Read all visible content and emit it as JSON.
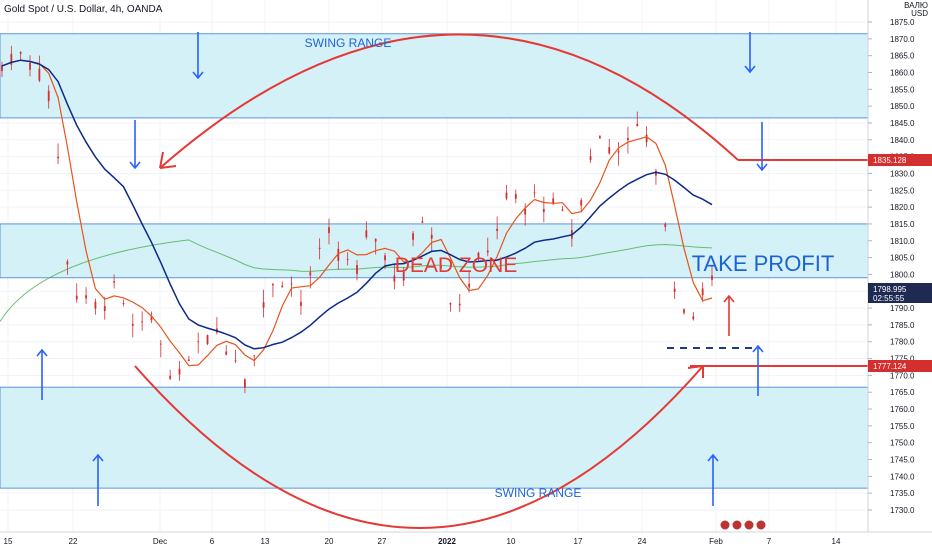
{
  "header": {
    "symbol_line": "Gold Spot / U.S. Dollar, 4h, OANDA"
  },
  "axis": {
    "currency_line1": "ВАЛЮ",
    "currency_line2": "USD"
  },
  "colors": {
    "zone_fill": "#d4f1f7",
    "zone_border": "#3c7dd1",
    "arrow_blue": "#2962ff",
    "arc_red": "#e53935",
    "candle": "#d32f2f",
    "ma_fast": "#e8541c",
    "ma_slow": "#0d2a8a",
    "ma_long": "#4caf50",
    "text_blue": "#1e63d6",
    "text_red": "#e53935",
    "price_badge": "#1e2a52",
    "level_badge": "#d32f2f"
  },
  "chart_data": {
    "type": "candlestick",
    "title": "Gold Spot / U.S. Dollar, 4h, OANDA",
    "x_ticks": [
      "15",
      "22",
      "Dec",
      "6",
      "13",
      "20",
      "27",
      "2022",
      "10",
      "17",
      "24",
      "Feb",
      "7",
      "14"
    ],
    "y_ticks": [
      1875,
      1870,
      1865,
      1860,
      1855,
      1850,
      1845,
      1840,
      1835,
      1830,
      1825,
      1820,
      1815,
      1810,
      1805,
      1800,
      1795,
      1790,
      1785,
      1780,
      1775,
      1770,
      1765,
      1760,
      1755,
      1750,
      1745,
      1740,
      1735,
      1730
    ],
    "ylim": [
      1729,
      1877
    ],
    "price_path": [
      [
        15,
        1862
      ],
      [
        17,
        1866
      ],
      [
        19,
        1861
      ],
      [
        20,
        1853
      ],
      [
        21,
        1835
      ],
      [
        22,
        1805
      ],
      [
        23,
        1795
      ],
      [
        24,
        1792
      ],
      [
        25,
        1790
      ],
      [
        26,
        1793
      ],
      [
        27,
        1796
      ],
      [
        28,
        1790
      ],
      [
        29,
        1785
      ],
      [
        30,
        1782
      ],
      [
        31,
        1788
      ],
      [
        32,
        1779
      ],
      [
        33,
        1772
      ],
      [
        34,
        1768
      ],
      [
        35,
        1775
      ],
      [
        36,
        1781
      ],
      [
        37,
        1782
      ],
      [
        38,
        1785
      ],
      [
        39,
        1778
      ],
      [
        40,
        1776
      ],
      [
        41,
        1770
      ],
      [
        42,
        1778
      ],
      [
        43,
        1791
      ],
      [
        44,
        1797
      ],
      [
        45,
        1800
      ],
      [
        46,
        1797
      ],
      [
        47,
        1792
      ],
      [
        48,
        1799
      ],
      [
        49,
        1806
      ],
      [
        50,
        1810
      ],
      [
        51,
        1806
      ],
      [
        52,
        1804
      ],
      [
        53,
        1800
      ],
      [
        54,
        1810
      ],
      [
        55,
        1812
      ],
      [
        56,
        1806
      ],
      [
        57,
        1800
      ],
      [
        58,
        1800
      ],
      [
        59,
        1810
      ],
      [
        60,
        1817
      ],
      [
        61,
        1813
      ],
      [
        62,
        1805
      ],
      [
        63,
        1792
      ],
      [
        64,
        1793
      ],
      [
        65,
        1797
      ],
      [
        66,
        1803
      ],
      [
        67,
        1808
      ],
      [
        68,
        1815
      ],
      [
        69,
        1822
      ],
      [
        70,
        1821
      ],
      [
        71,
        1819
      ],
      [
        72,
        1823
      ],
      [
        73,
        1822
      ],
      [
        74,
        1819
      ],
      [
        75,
        1818
      ],
      [
        76,
        1812
      ],
      [
        77,
        1822
      ],
      [
        78,
        1836
      ],
      [
        79,
        1840
      ],
      [
        80,
        1838
      ],
      [
        81,
        1839
      ],
      [
        82,
        1840
      ],
      [
        83,
        1842
      ],
      [
        84,
        1842
      ],
      [
        85,
        1830
      ],
      [
        86,
        1815
      ],
      [
        87,
        1798
      ],
      [
        88,
        1788
      ],
      [
        89,
        1790
      ],
      [
        90,
        1795
      ],
      [
        91,
        1797
      ]
    ],
    "levels": [
      {
        "label": "1835.128",
        "price": 1835.128
      },
      {
        "label": "1777.124",
        "price": 1777.124
      }
    ],
    "current_price": {
      "label": "1798.995",
      "timer": "02:55:55",
      "price": 1798.995
    },
    "zones": [
      {
        "top": 1871.5,
        "bottom": 1846.5
      },
      {
        "top": 1815.0,
        "bottom": 1799.0
      },
      {
        "top": 1766.5,
        "bottom": 1736.5
      }
    ],
    "annotations": {
      "swing_top": "SWING RANGE",
      "swing_bottom": "SWING RANGE",
      "dead_zone": "DEAD ZONE",
      "take_profit": "TAKE PROFIT"
    },
    "series": [
      {
        "name": "",
        "color": "#e8541c"
      },
      {
        "name": "",
        "color": "#0d2a8a"
      },
      {
        "name": "",
        "color": "#4caf50"
      }
    ],
    "grid": true
  }
}
